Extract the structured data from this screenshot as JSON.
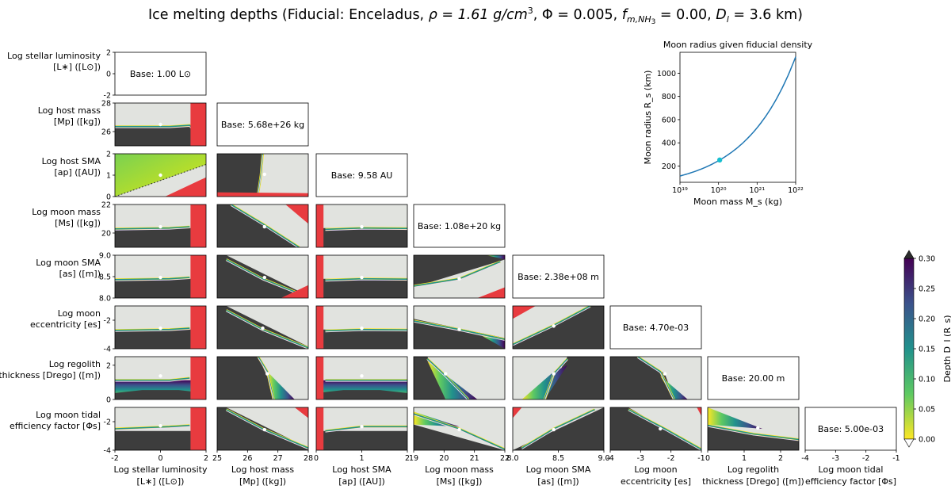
{
  "title": "Ice melting depths (Fiducial: Enceladus, ρ = 1.61 g/cm³, Φ = 0.005, f_m,NH₃ = 0.00, D_l = 3.6 km)",
  "title_parts": {
    "prefix": "Ice melting depths (Fiducial: Enceladus, ",
    "rho": "ρ = 1.61 g/cm",
    "rho_exp": "3",
    "phi": ", Φ = 0.005, ",
    "fm": "f",
    "fm_sub": "m,NH",
    "fm_sub2": "3",
    "fm_val": " =  0.00, ",
    "dl": "D",
    "dl_sub": "l",
    "dl_val": " = 3.6 km)"
  },
  "colors": {
    "dark": "#3d3d3d",
    "light": "#e1e3df",
    "red": "#e83b3f",
    "marker": "#ffffff",
    "line_blue": "#1f77b4",
    "dot": "#17becf"
  },
  "chart_data": {
    "type": "heatmap-corner",
    "parameters": [
      {
        "key": "L",
        "row_label": [
          "Log stellar luminosity",
          "[L∗] ([L⊙])"
        ],
        "col_label": [
          "Log stellar luminosity",
          "[L∗] ([L⊙])"
        ],
        "range": [
          -2,
          2
        ],
        "ticks": [
          -2,
          0,
          2
        ],
        "base": "Base: 1.00 L⊙"
      },
      {
        "key": "Mp",
        "row_label": [
          "Log host mass",
          "[Mp] ([kg])"
        ],
        "col_label": [
          "Log host mass",
          "[Mp] ([kg])"
        ],
        "range": [
          25,
          28
        ],
        "ticks": [
          25,
          26,
          27,
          28
        ],
        "row_ticks": [
          26,
          28
        ],
        "base": "Base: 5.68e+26 kg"
      },
      {
        "key": "ap",
        "row_label": [
          "Log host SMA",
          "[ap] ([AU])"
        ],
        "col_label": [
          "Log host SMA",
          "[ap] ([AU])"
        ],
        "range": [
          0,
          2
        ],
        "ticks": [
          0,
          1,
          2
        ],
        "base": "Base: 9.58 AU"
      },
      {
        "key": "Ms",
        "row_label": [
          "Log moon mass",
          "[Ms] ([kg])"
        ],
        "col_label": [
          "Log moon mass",
          "[Ms] ([kg])"
        ],
        "range": [
          19,
          22
        ],
        "ticks": [
          19,
          20,
          21,
          22
        ],
        "row_ticks": [
          20,
          22
        ],
        "base": "Base: 1.08e+20 kg"
      },
      {
        "key": "as",
        "row_label": [
          "Log moon SMA",
          "[as] ([m])"
        ],
        "col_label": [
          "Log moon SMA",
          "[as] ([m])"
        ],
        "range": [
          8,
          9
        ],
        "ticks": [
          8.0,
          8.5,
          9.0
        ],
        "row_ticks": [
          8.0,
          8.5,
          9.0
        ],
        "base": "Base: 2.38e+08 m"
      },
      {
        "key": "es",
        "row_label": [
          "Log moon",
          "eccentricity [es]"
        ],
        "col_label": [
          "Log moon",
          "eccentricity [es]"
        ],
        "range": [
          -4,
          -1
        ],
        "ticks": [
          -4,
          -3,
          -2,
          -1
        ],
        "row_ticks": [
          -4,
          -2
        ],
        "base": "Base: 4.70e-03"
      },
      {
        "key": "Dr",
        "row_label": [
          "Log regolith",
          "thickness [Drego] ([m])"
        ],
        "col_label": [
          "Log regolith",
          "thickness [Drego] ([m])"
        ],
        "range": [
          0,
          2.5
        ],
        "ticks": [
          0,
          1,
          2
        ],
        "row_ticks": [
          0,
          2
        ],
        "base": "Base: 20.00 m"
      },
      {
        "key": "Ps",
        "row_label": [
          "Log moon tidal",
          "efficiency factor [Φs]"
        ],
        "col_label": [
          "Log moon tidal",
          "efficiency factor [Φs]"
        ],
        "range": [
          -4,
          -1
        ],
        "ticks": [
          -4,
          -3,
          -2,
          -1
        ],
        "row_ticks": [
          -4,
          -2
        ],
        "base": "Base: 5.00e-03"
      }
    ],
    "colorbar": {
      "label": "Depth D_l (R_s)",
      "range": [
        0,
        0.3
      ],
      "ticks": [
        0.0,
        0.05,
        0.1,
        0.15,
        0.2,
        0.25,
        0.3
      ],
      "tick_labels": [
        "0.00",
        "0.05",
        "0.10",
        "0.15",
        "0.20",
        "0.25",
        "0.30"
      ],
      "colormap": "viridis_r"
    },
    "inset": {
      "type": "line",
      "title": "Moon radius given fiducial density",
      "xlabel": "Moon mass M_s (kg)",
      "ylabel": "Moon radius R_s (km)",
      "xscale": "log",
      "xlim": [
        1e+19,
        1e+22
      ],
      "ylim": [
        60,
        1180
      ],
      "x_ticks": [
        "10¹⁹",
        "10²⁰",
        "10²¹",
        "10²²"
      ],
      "y_ticks": [
        200,
        400,
        600,
        800,
        1000
      ],
      "density_g_cm3": 1.61,
      "series": [
        {
          "name": "radius",
          "x_log10": [
            19,
            19.5,
            20,
            20.5,
            21,
            21.5,
            22
          ],
          "y": [
            115,
            168,
            246,
            361,
            530,
            778,
            1143
          ]
        }
      ],
      "marker": {
        "x_log10": 20.03,
        "y": 252
      }
    }
  }
}
